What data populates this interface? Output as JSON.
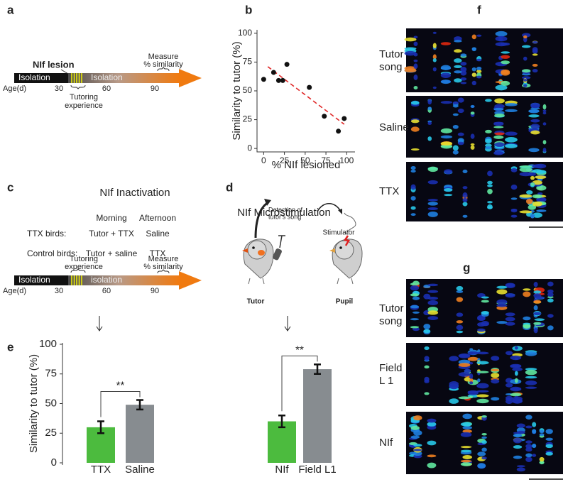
{
  "panels": {
    "a": {
      "label": "a",
      "lesion": "NIf lesion",
      "isolation_1": "Isolation",
      "isolation_2": "Isolation",
      "age": "Age(d)",
      "ages": [
        "30",
        "60",
        "90"
      ],
      "tutoring": [
        "Tutoring",
        "experience"
      ],
      "measure": [
        "Measure",
        "% similarity"
      ]
    },
    "b": {
      "label": "b"
    },
    "c": {
      "label": "c",
      "title": "NIf Inactivation",
      "columns": [
        "Morning",
        "Afternoon"
      ],
      "rows": [
        [
          "TTX birds:",
          "Tutor + TTX",
          "Saline"
        ],
        [
          "Control birds:",
          "Tutor + saline",
          "TTX"
        ]
      ],
      "isolation_1": "Isolation",
      "isolation_2": "isolation",
      "age": "Age(d)",
      "ages": [
        "30",
        "60",
        "90"
      ],
      "tutoring": [
        "Tutoring",
        "experience"
      ],
      "measure": [
        "Measure",
        "% similarity"
      ]
    },
    "d": {
      "label": "d",
      "title": "NIf Microstimulation",
      "detection": [
        "Detection of",
        "tutor's song"
      ],
      "stimulator": "Stimulator",
      "tutor": "Tutor",
      "pupil": "Pupil"
    },
    "e": {
      "label": "e"
    },
    "f": {
      "label": "f",
      "rows": [
        [
          "Tutor",
          "song"
        ],
        [
          "Saline"
        ],
        [
          "TTX"
        ]
      ]
    },
    "g": {
      "label": "g",
      "rows": [
        [
          "Tutor",
          "song"
        ],
        [
          "Field",
          "L 1"
        ],
        [
          "NIf"
        ]
      ]
    }
  },
  "chart_data": [
    {
      "type": "scatter",
      "xlabel": "% NIf lesioned",
      "ylabel": "Similarity to tutor (%)",
      "x": [
        0,
        12,
        18,
        23,
        28,
        55,
        73,
        90,
        97
      ],
      "values": [
        60,
        66,
        59,
        59,
        73,
        53,
        28,
        15,
        26
      ],
      "color": "#111111",
      "trend": {
        "x": [
          5,
          97
        ],
        "y": [
          71,
          21
        ],
        "color": "#e02828"
      },
      "xlim": [
        -8,
        110
      ],
      "ylim": [
        -3,
        103
      ],
      "xticks": [
        0,
        25,
        50,
        75,
        100
      ],
      "yticks": [
        0,
        25,
        50,
        75,
        100
      ]
    },
    {
      "type": "bar",
      "ylabel": "Similarity to tutor (%)",
      "categories": [
        "TTX",
        "Saline",
        "NIf",
        "Field L1"
      ],
      "values": [
        30,
        49,
        35,
        79
      ],
      "errors": [
        5,
        4,
        5,
        4
      ],
      "colors": [
        "#4cbb3e",
        "#878c90",
        "#4cbb3e",
        "#878c90"
      ],
      "annotations": [
        "**",
        "**"
      ],
      "ylim": [
        0,
        100
      ],
      "yticks": [
        0,
        25,
        50,
        75,
        100
      ]
    }
  ]
}
